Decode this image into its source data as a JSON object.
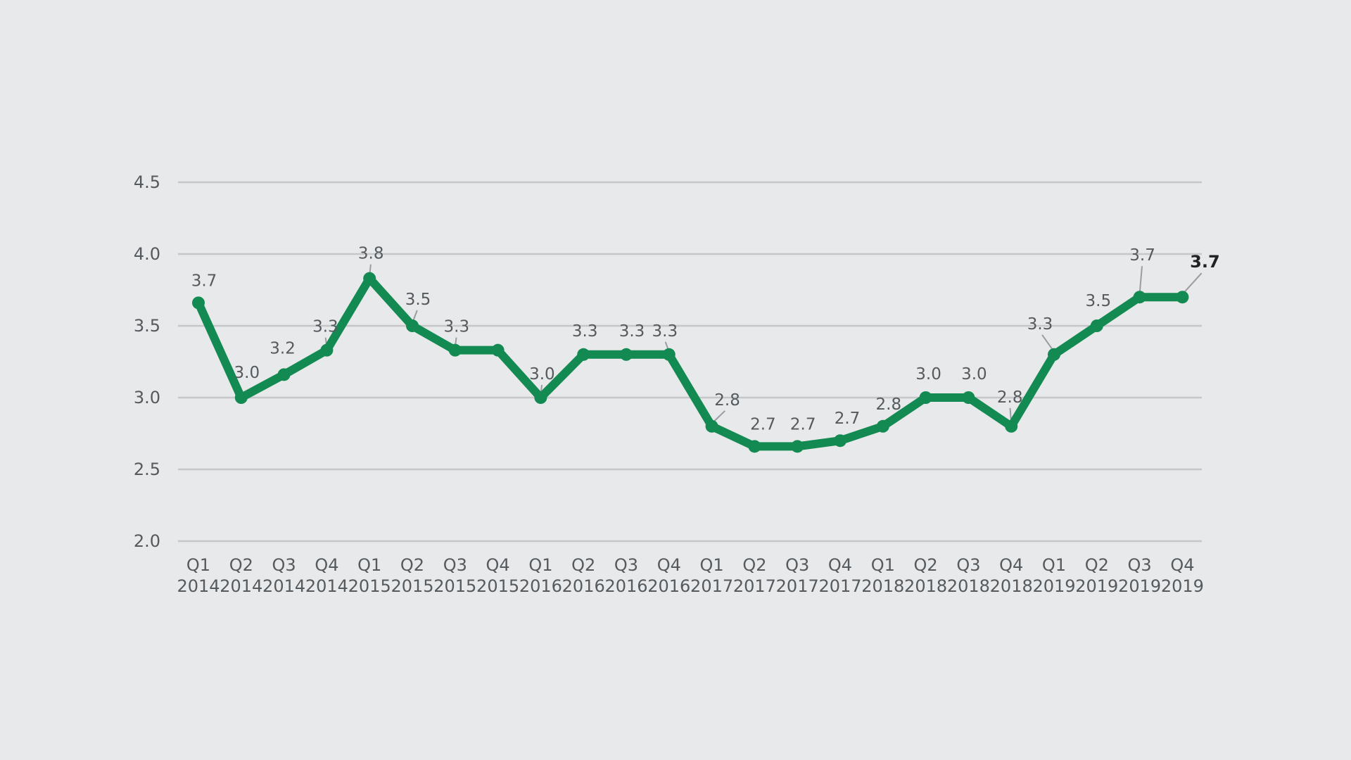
{
  "chart_data": {
    "type": "line",
    "title": "",
    "xlabel": "",
    "ylabel": "",
    "ylim": [
      2.0,
      4.5
    ],
    "yticks": [
      "2.0",
      "2.5",
      "3.0",
      "3.5",
      "4.0",
      "4.5"
    ],
    "grid": "horizontal",
    "categories": [
      [
        "Q1",
        "2014"
      ],
      [
        "Q2",
        "2014"
      ],
      [
        "Q3",
        "2014"
      ],
      [
        "Q4",
        "2014"
      ],
      [
        "Q1",
        "2015"
      ],
      [
        "Q2",
        "2015"
      ],
      [
        "Q3",
        "2015"
      ],
      [
        "Q4",
        "2015"
      ],
      [
        "Q1",
        "2016"
      ],
      [
        "Q2",
        "2016"
      ],
      [
        "Q3",
        "2016"
      ],
      [
        "Q4",
        "2016"
      ],
      [
        "Q1",
        "2017"
      ],
      [
        "Q2",
        "2017"
      ],
      [
        "Q3",
        "2017"
      ],
      [
        "Q4",
        "2017"
      ],
      [
        "Q1",
        "2018"
      ],
      [
        "Q2",
        "2018"
      ],
      [
        "Q3",
        "2018"
      ],
      [
        "Q4",
        "2018"
      ],
      [
        "Q1",
        "2019"
      ],
      [
        "Q2",
        "2019"
      ],
      [
        "Q3",
        "2019"
      ],
      [
        "Q4",
        "2019"
      ]
    ],
    "series": [
      {
        "color": "#138a52",
        "values": [
          3.66,
          3.0,
          3.16,
          3.33,
          3.83,
          3.5,
          3.33,
          3.33,
          3.0,
          3.3,
          3.3,
          3.3,
          2.8,
          2.66,
          2.66,
          2.7,
          2.8,
          3.0,
          3.0,
          2.8,
          3.3,
          3.5,
          3.7,
          3.7
        ],
        "labels": [
          "3.7",
          "3.0",
          "3.2",
          "3.3",
          "3.8",
          "3.5",
          "3.3",
          "",
          "3.0",
          "3.3",
          "3.3",
          "3.3",
          "2.8",
          "2.7",
          "2.7",
          "2.7",
          "2.8",
          "3.0",
          "3.0",
          "2.8",
          "3.3",
          "3.5",
          "3.7",
          "3.7"
        ]
      }
    ]
  }
}
